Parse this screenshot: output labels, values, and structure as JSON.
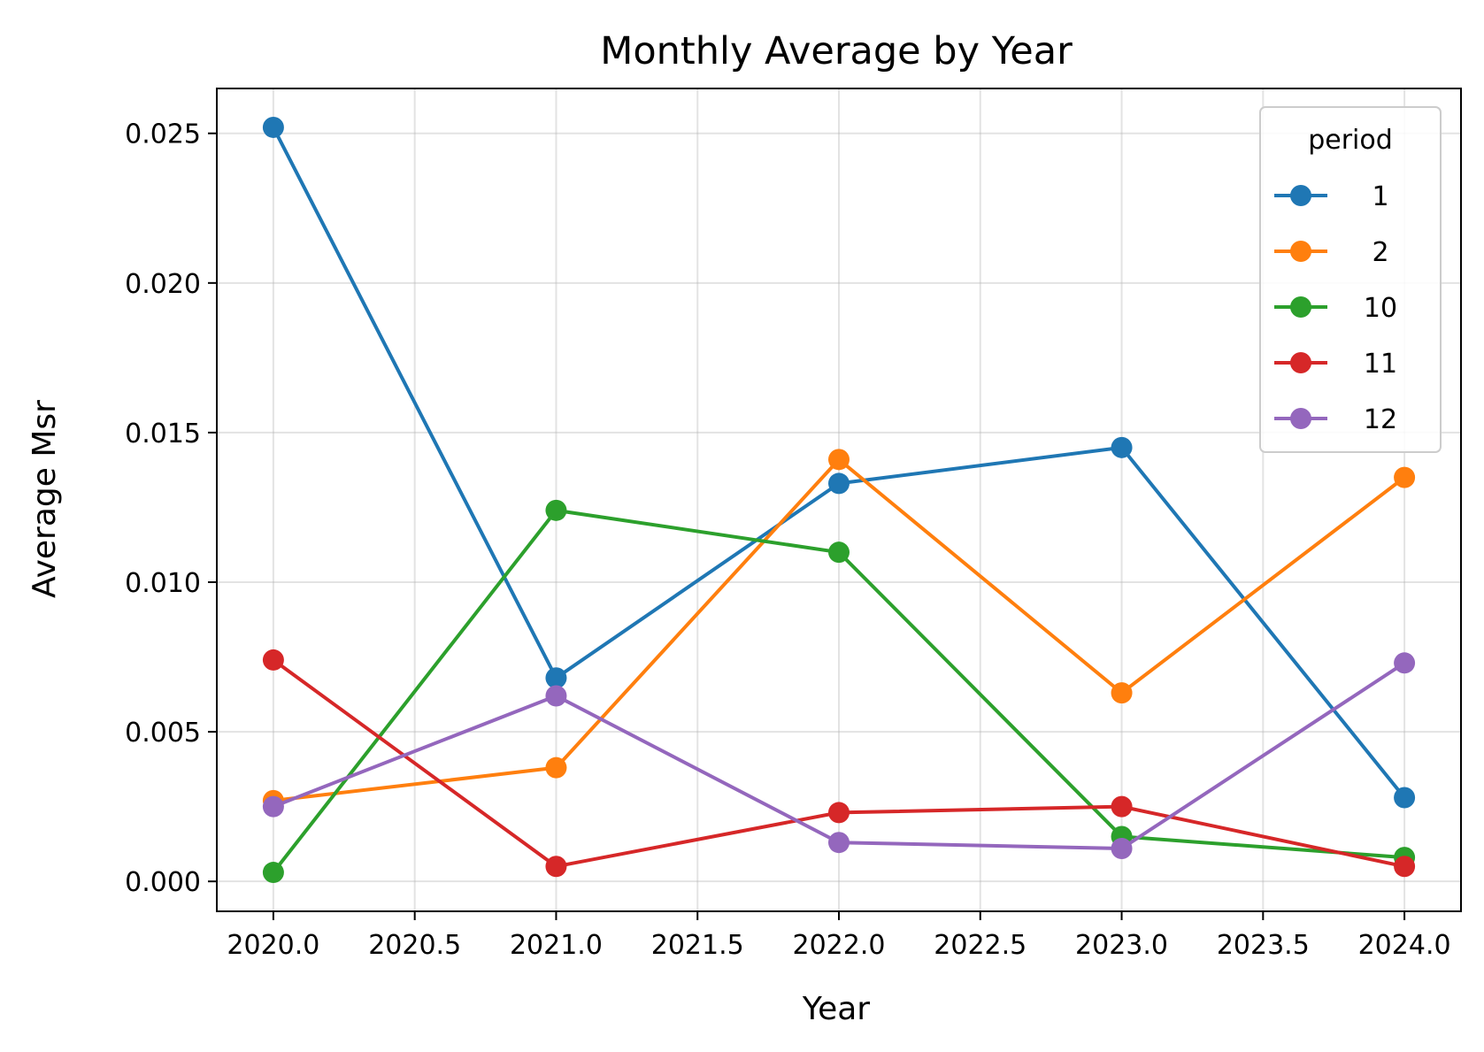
{
  "chart_data": {
    "type": "line",
    "title": "Monthly Average by Year",
    "xlabel": "Year",
    "ylabel": "Average Msr",
    "x": [
      2020,
      2021,
      2022,
      2023,
      2024
    ],
    "xlim": [
      2019.8,
      2024.2
    ],
    "ylim": [
      -0.001,
      0.0265
    ],
    "x_ticks": [
      2020.0,
      2020.5,
      2021.0,
      2021.5,
      2022.0,
      2022.5,
      2023.0,
      2023.5,
      2024.0
    ],
    "x_tick_labels": [
      "2020.0",
      "2020.5",
      "2021.0",
      "2021.5",
      "2022.0",
      "2022.5",
      "2023.0",
      "2023.5",
      "2024.0"
    ],
    "y_ticks": [
      0.0,
      0.005,
      0.01,
      0.015,
      0.02,
      0.025
    ],
    "y_tick_labels": [
      "0.000",
      "0.005",
      "0.010",
      "0.015",
      "0.020",
      "0.025"
    ],
    "grid": true,
    "legend": {
      "title": "period",
      "placement": "top-right"
    },
    "series": [
      {
        "name": "1",
        "color": "#1f77b4",
        "values": [
          0.0252,
          0.0068,
          0.0133,
          0.0145,
          0.0028
        ]
      },
      {
        "name": "2",
        "color": "#ff7f0e",
        "values": [
          0.0027,
          0.0038,
          0.0141,
          0.0063,
          0.0135
        ]
      },
      {
        "name": "10",
        "color": "#2ca02c",
        "values": [
          0.0003,
          0.0124,
          0.011,
          0.0015,
          0.0008
        ]
      },
      {
        "name": "11",
        "color": "#d62728",
        "values": [
          0.0074,
          0.0005,
          0.0023,
          0.0025,
          0.0005
        ]
      },
      {
        "name": "12",
        "color": "#9467bd",
        "values": [
          0.0025,
          0.0062,
          0.0013,
          0.0011,
          0.0073
        ]
      }
    ]
  }
}
